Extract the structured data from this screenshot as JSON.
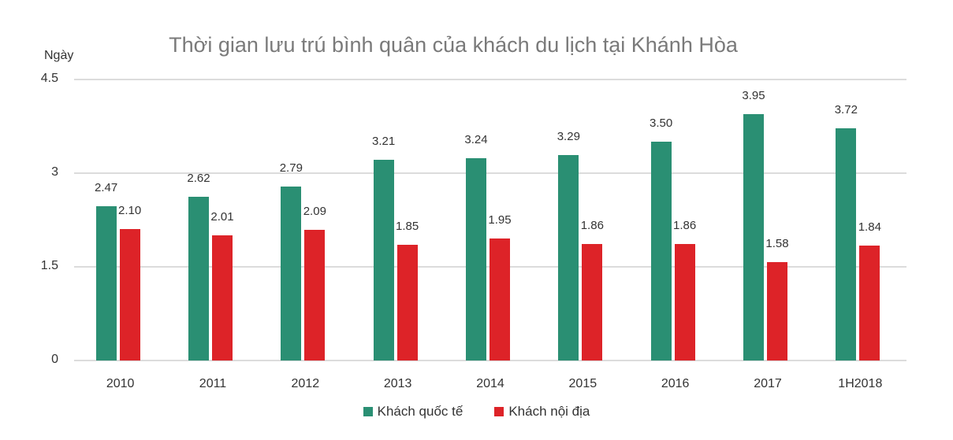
{
  "chart_data": {
    "type": "bar",
    "title": "Thời gian lưu trú bình quân của khách du lịch tại Khánh Hòa",
    "ylabel": "Ngày",
    "xlabel": "",
    "ylim": [
      0,
      4.5
    ],
    "yticks": [
      "0",
      "1.5",
      "3",
      "4.5"
    ],
    "grid": true,
    "legend_position": "bottom",
    "categories": [
      "2010",
      "2011",
      "2012",
      "2013",
      "2014",
      "2015",
      "2016",
      "2017",
      "1H2018"
    ],
    "series": [
      {
        "name": "Khách quốc tế",
        "color": "#2a8f73",
        "values": [
          2.47,
          2.62,
          2.79,
          3.21,
          3.24,
          3.29,
          3.5,
          3.95,
          3.72
        ],
        "labels": [
          "2.47",
          "2.62",
          "2.79",
          "3.21",
          "3.24",
          "3.29",
          "3.50",
          "3.95",
          "3.72"
        ]
      },
      {
        "name": "Khách nội địa",
        "color": "#dd2328",
        "values": [
          2.1,
          2.01,
          2.09,
          1.85,
          1.95,
          1.86,
          1.86,
          1.58,
          1.84
        ],
        "labels": [
          "2.10",
          "2.01",
          "2.09",
          "1.85",
          "1.95",
          "1.86",
          "1.86",
          "1.58",
          "1.84"
        ]
      }
    ]
  },
  "header": {
    "title": "Thời gian lưu trú bình quân của khách du lịch tại Khánh Hòa",
    "y_unit": "Ngày"
  },
  "legend": {
    "items": [
      {
        "label": "Khách quốc tế",
        "color": "#2a8f73"
      },
      {
        "label": "Khách nội địa",
        "color": "#dd2328"
      }
    ]
  }
}
